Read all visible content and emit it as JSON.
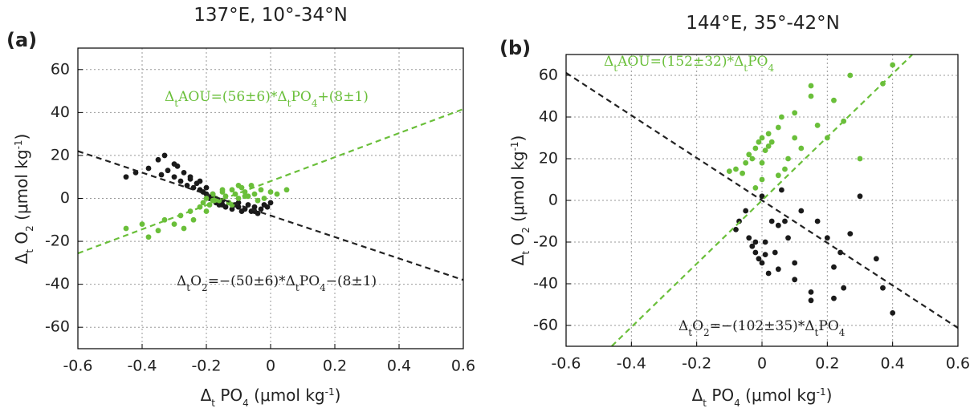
{
  "chart_data": [
    {
      "type": "scatter",
      "panel": "(a)",
      "title": "137°E, 10°-34°N",
      "xlabel": [
        "Δ",
        "t",
        " PO",
        "4",
        " (μmol kg",
        "-1",
        ")"
      ],
      "ylabel": [
        "Δ",
        "t",
        " O",
        "2",
        " (μmol kg",
        "-1",
        ")"
      ],
      "xlim": [
        -0.6,
        0.6
      ],
      "xticks": [
        -0.6,
        -0.4,
        -0.2,
        0,
        0.2,
        0.4,
        0.6
      ],
      "ylim": [
        -70,
        70
      ],
      "yticks": [
        -60,
        -40,
        -20,
        0,
        20,
        40,
        60
      ],
      "grid": true,
      "annotations": [
        [
          "Δ",
          "t",
          "AOU=(56±6)*Δ",
          "t",
          "PO",
          "4",
          "+(8±1)"
        ],
        [
          "Δ",
          "t",
          "O",
          "2",
          "=−(50±6)*Δ",
          "t",
          "PO",
          "4",
          "−(8±1)"
        ]
      ],
      "series": [
        {
          "color": "#1a1a1a",
          "x": [
            -0.45,
            -0.42,
            -0.38,
            -0.35,
            -0.34,
            -0.33,
            -0.32,
            -0.3,
            -0.29,
            -0.28,
            -0.27,
            -0.26,
            -0.25,
            -0.24,
            -0.23,
            -0.22,
            -0.21,
            -0.2,
            -0.19,
            -0.18,
            -0.17,
            -0.16,
            -0.15,
            -0.14,
            -0.13,
            -0.12,
            -0.11,
            -0.1,
            -0.09,
            -0.08,
            -0.07,
            -0.06,
            -0.05,
            -0.04,
            -0.03,
            -0.02,
            -0.01,
            0,
            -0.3,
            -0.25,
            -0.2,
            -0.15,
            -0.1,
            -0.05,
            -0.22,
            -0.18
          ],
          "values": [
            10,
            12,
            14,
            18,
            11,
            20,
            13,
            10,
            15,
            8,
            12,
            6,
            9,
            5,
            7,
            4,
            3,
            2,
            0,
            1,
            -2,
            -3,
            -1,
            -4,
            -2,
            -5,
            -3,
            -4,
            -6,
            -5,
            -3,
            -6,
            -4,
            -7,
            -5,
            -3,
            -4,
            -2,
            16,
            10,
            5,
            -3,
            -2,
            -6,
            8,
            2
          ]
        },
        {
          "color": "#6abf3a",
          "x": [
            -0.45,
            -0.4,
            -0.38,
            -0.35,
            -0.33,
            -0.3,
            -0.28,
            -0.27,
            -0.25,
            -0.24,
            -0.22,
            -0.21,
            -0.2,
            -0.19,
            -0.18,
            -0.17,
            -0.16,
            -0.15,
            -0.14,
            -0.13,
            -0.12,
            -0.11,
            -0.1,
            -0.09,
            -0.08,
            -0.07,
            -0.06,
            -0.05,
            -0.04,
            -0.03,
            -0.02,
            0,
            0.02,
            0.05,
            -0.2,
            -0.15,
            -0.1,
            -0.12,
            -0.08,
            -0.18
          ],
          "values": [
            -14,
            -12,
            -18,
            -15,
            -10,
            -12,
            -8,
            -14,
            -6,
            -10,
            -4,
            -2,
            0,
            -3,
            2,
            0,
            -1,
            3,
            1,
            -2,
            4,
            2,
            0,
            5,
            3,
            1,
            6,
            2,
            -1,
            4,
            0,
            3,
            2,
            4,
            -6,
            4,
            6,
            -3,
            1,
            -1
          ]
        },
        {
          "type": "line",
          "color": "#6abf3a",
          "x": [
            -0.6,
            0.6
          ],
          "values": [
            -25.6,
            41.6
          ]
        },
        {
          "type": "line",
          "color": "#222222",
          "x": [
            -0.6,
            0.6
          ],
          "values": [
            22,
            -38
          ]
        }
      ]
    },
    {
      "type": "scatter",
      "panel": "(b)",
      "title": "144°E, 35°-42°N",
      "xlabel": [
        "Δ",
        "t",
        " PO",
        "4",
        " (μmol kg",
        "-1",
        ")"
      ],
      "ylabel": [
        "Δ",
        "t",
        " O",
        "2",
        " (μmol kg",
        "-1",
        ")"
      ],
      "xlim": [
        -0.6,
        0.6
      ],
      "xticks": [
        -0.6,
        -0.4,
        -0.2,
        0,
        0.2,
        0.4,
        0.6
      ],
      "ylim": [
        -70,
        70
      ],
      "yticks": [
        -60,
        -40,
        -20,
        0,
        20,
        40,
        60
      ],
      "grid": true,
      "annotations": [
        [
          "Δ",
          "t",
          "AOU=(152±32)*Δ",
          "t",
          "PO",
          "4"
        ],
        [
          "Δ",
          "t",
          "O",
          "2",
          "=−(102±35)*Δ",
          "t",
          "PO",
          "4"
        ]
      ],
      "series": [
        {
          "color": "#1a1a1a",
          "x": [
            -0.08,
            -0.07,
            -0.05,
            -0.04,
            -0.03,
            -0.02,
            -0.01,
            0,
            0,
            0.01,
            0.02,
            0.03,
            0.04,
            0.05,
            0.06,
            0.07,
            0.08,
            0.1,
            0.12,
            0.15,
            0.15,
            0.17,
            0.2,
            0.22,
            0.24,
            0.25,
            0.27,
            0.3,
            0.35,
            0.37,
            0.4,
            -0.02,
            0.01,
            0.05,
            0.1,
            0.22
          ],
          "values": [
            -14,
            -10,
            -5,
            -18,
            -22,
            -25,
            -28,
            -30,
            2,
            -20,
            -35,
            -10,
            -25,
            -33,
            5,
            -10,
            -18,
            -38,
            -5,
            -44,
            -48,
            -10,
            -18,
            -47,
            -25,
            -42,
            -16,
            2,
            -28,
            -42,
            -54,
            -20,
            -26,
            -12,
            -30,
            -32
          ]
        },
        {
          "color": "#6abf3a",
          "x": [
            -0.1,
            -0.08,
            -0.06,
            -0.05,
            -0.04,
            -0.03,
            -0.02,
            -0.01,
            0,
            0,
            0.01,
            0.02,
            0.03,
            0.05,
            0.06,
            0.07,
            0.08,
            0.1,
            0.12,
            0.15,
            0.15,
            0.17,
            0.2,
            0.22,
            0.25,
            0.27,
            0.3,
            0.37,
            0.4,
            0.02,
            0.05,
            0.1,
            -0.02,
            0
          ],
          "values": [
            14,
            15,
            13,
            18,
            22,
            20,
            25,
            28,
            30,
            10,
            24,
            32,
            28,
            35,
            40,
            15,
            20,
            30,
            25,
            55,
            50,
            36,
            30,
            48,
            38,
            60,
            20,
            56,
            65,
            26,
            12,
            42,
            6,
            18
          ]
        },
        {
          "type": "line",
          "color": "#6abf3a",
          "x": [
            -0.46,
            0.46
          ],
          "values": [
            -69.9,
            69.9
          ]
        },
        {
          "type": "line",
          "color": "#222222",
          "x": [
            -0.6,
            0.6
          ],
          "values": [
            61.2,
            -61.2
          ]
        }
      ]
    }
  ]
}
